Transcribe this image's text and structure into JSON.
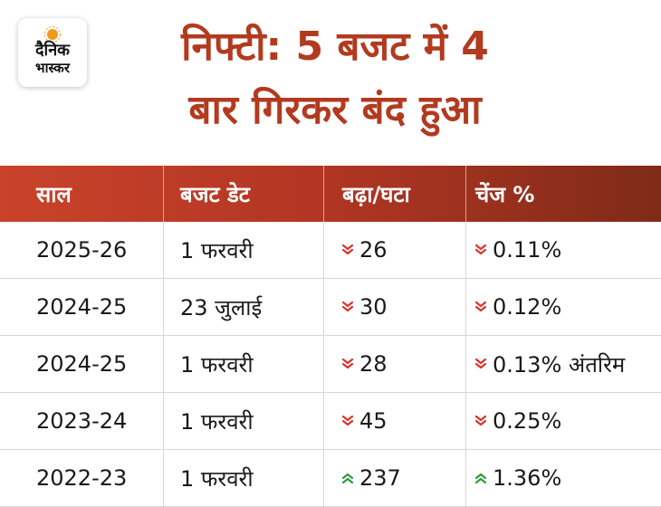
{
  "logo": {
    "line1": "दैनिक",
    "line2": "भास्कर"
  },
  "title": {
    "line1": "निफ्टी: 5 बजट में 4",
    "line2": "बार गिरकर बंद हुआ"
  },
  "colors": {
    "title": "#b23a1e",
    "header_start": "#c9432a",
    "header_end": "#7f2b18",
    "down": "#d9322b",
    "up": "#2e9a3a"
  },
  "table": {
    "headers": [
      "साल",
      "बजट डेट",
      "बढ़ा/घटा",
      "चेंज %"
    ],
    "rows": [
      {
        "year": "2025-26",
        "date": "1 फरवरी",
        "direction": "down",
        "points": "26",
        "change": "0.11%"
      },
      {
        "year": "2024-25",
        "date": "23 जुलाई",
        "direction": "down",
        "points": "30",
        "change": "0.12%"
      },
      {
        "year": "2024-25",
        "date": "1 फरवरी",
        "direction": "down",
        "points": "28",
        "change": "0.13% अंतरिम"
      },
      {
        "year": "2023-24",
        "date": "1 फरवरी",
        "direction": "down",
        "points": "45",
        "change": "0.25%"
      },
      {
        "year": "2022-23",
        "date": "1 फरवरी",
        "direction": "up",
        "points": "237",
        "change": "1.36%"
      }
    ]
  }
}
